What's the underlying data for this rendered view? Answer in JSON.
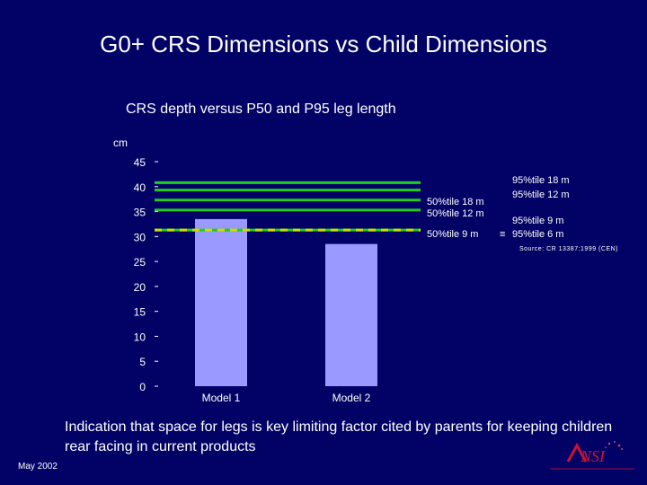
{
  "slide": {
    "title": "G0+ CRS Dimensions vs Child Dimensions",
    "caption": "Indication that space for legs is key limiting factor cited by parents for keeping children rear facing in current products",
    "date": "May 2002",
    "logo_text": "ANSI"
  },
  "chart_data": {
    "type": "bar",
    "title": "CRS depth versus P50 and P95 leg length",
    "ylabel": "cm",
    "ylim": [
      0,
      45
    ],
    "yticks": [
      0,
      5,
      10,
      15,
      20,
      25,
      30,
      35,
      40,
      45
    ],
    "categories": [
      "Model 1",
      "Model 2"
    ],
    "values": [
      33.5,
      28.5
    ],
    "bar_color": "#9999ff",
    "reference_lines": [
      {
        "y": 40.8,
        "color": "#22cc22",
        "style": "solid"
      },
      {
        "y": 39.3,
        "color": "#22cc22",
        "style": "solid"
      },
      {
        "y": 37.3,
        "color": "#22cc22",
        "style": "solid"
      },
      {
        "y": 35.3,
        "color": "#22cc22",
        "style": "solid"
      },
      {
        "y": 31.3,
        "color": "#22cc22",
        "style": "dashed",
        "dash_color": "#ccdd00"
      }
    ],
    "annotations": {
      "p95_18m": "95%tile 18 m",
      "p95_12m": "95%tile 12 m",
      "p50_18m": "50%tile 18 m",
      "p50_12m": "50%tile 12 m",
      "p95_9m": "95%tile 9 m",
      "p95_6m": "95%tile 6 m",
      "p50_9m": "50%tile 9 m",
      "eq": "≡"
    },
    "source": "Source: CR 13387:1999 (CEN)"
  }
}
